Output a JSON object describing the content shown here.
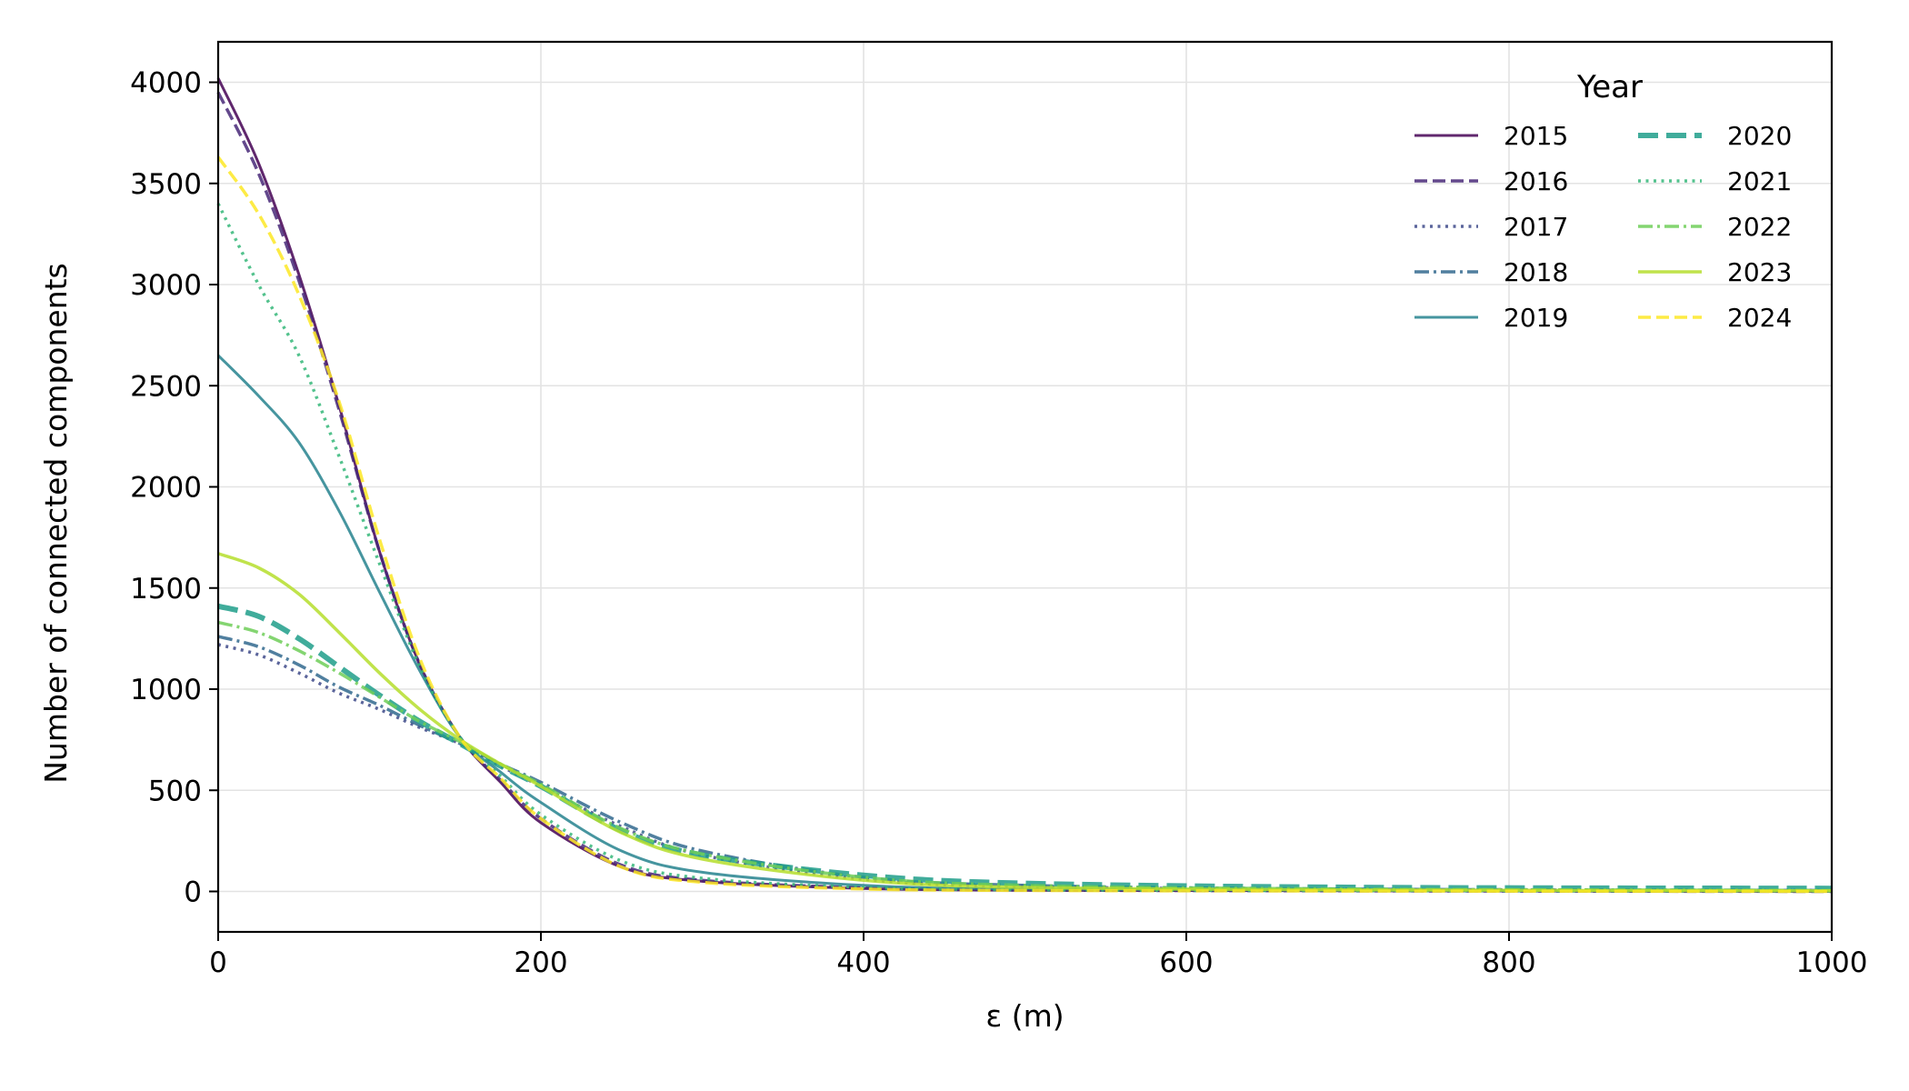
{
  "chart_data": {
    "type": "line",
    "xlabel": "ε (m)",
    "ylabel": "Number of connected components",
    "xlim": [
      0,
      1000
    ],
    "ylim": [
      -200,
      4200
    ],
    "xticks": [
      0,
      200,
      400,
      600,
      800,
      1000
    ],
    "yticks": [
      0,
      500,
      1000,
      1500,
      2000,
      2500,
      3000,
      3500,
      4000
    ],
    "grid": true,
    "legend": {
      "title": "Year",
      "placement": "top-right",
      "columns": 2
    },
    "series": [
      {
        "name": "2015",
        "color": "#440154",
        "dash": "solid",
        "width": 3,
        "x": [
          0,
          25,
          50,
          75,
          100,
          125,
          150,
          175,
          200,
          250,
          300,
          400,
          500,
          700,
          1000
        ],
        "y": [
          4020,
          3600,
          3050,
          2400,
          1680,
          1120,
          760,
          540,
          340,
          120,
          50,
          15,
          6,
          3,
          0
        ]
      },
      {
        "name": "2016",
        "color": "#482878",
        "dash": "dashed",
        "width": 3.5,
        "x": [
          0,
          25,
          50,
          75,
          100,
          125,
          150,
          175,
          200,
          250,
          300,
          400,
          500,
          700,
          1000
        ],
        "y": [
          3950,
          3550,
          3020,
          2380,
          1680,
          1120,
          760,
          550,
          360,
          130,
          55,
          18,
          7,
          3,
          0
        ]
      },
      {
        "name": "2017",
        "color": "#3e4a89",
        "dash": "dotted",
        "width": 3.5,
        "x": [
          0,
          25,
          50,
          75,
          100,
          125,
          150,
          175,
          200,
          250,
          300,
          400,
          500,
          700,
          1000
        ],
        "y": [
          1220,
          1170,
          1080,
          980,
          900,
          810,
          730,
          620,
          520,
          320,
          180,
          60,
          25,
          10,
          5
        ]
      },
      {
        "name": "2018",
        "color": "#31688e",
        "dash": "dashdot",
        "width": 3.5,
        "x": [
          0,
          25,
          50,
          75,
          100,
          125,
          150,
          175,
          200,
          250,
          300,
          400,
          500,
          700,
          1000
        ],
        "y": [
          1260,
          1210,
          1120,
          1010,
          920,
          820,
          730,
          630,
          540,
          340,
          200,
          70,
          30,
          12,
          5
        ]
      },
      {
        "name": "2019",
        "color": "#26828e",
        "dash": "solid",
        "width": 3,
        "x": [
          0,
          25,
          50,
          75,
          100,
          125,
          150,
          175,
          200,
          250,
          300,
          400,
          500,
          700,
          1000
        ],
        "y": [
          2650,
          2450,
          2220,
          1880,
          1480,
          1090,
          760,
          590,
          440,
          200,
          95,
          30,
          12,
          5,
          2
        ]
      },
      {
        "name": "2020",
        "color": "#1f9e89",
        "dash": "longdash",
        "width": 6,
        "x": [
          0,
          25,
          50,
          75,
          100,
          125,
          150,
          175,
          200,
          250,
          300,
          400,
          500,
          700,
          1000
        ],
        "y": [
          1410,
          1360,
          1250,
          1110,
          970,
          840,
          730,
          620,
          520,
          300,
          180,
          80,
          40,
          20,
          15
        ]
      },
      {
        "name": "2021",
        "color": "#35b779",
        "dash": "dotted",
        "width": 3.5,
        "x": [
          0,
          25,
          50,
          75,
          100,
          125,
          150,
          175,
          200,
          250,
          300,
          400,
          500,
          700,
          1000
        ],
        "y": [
          3400,
          3000,
          2650,
          2150,
          1620,
          1110,
          760,
          570,
          380,
          150,
          65,
          20,
          8,
          4,
          2
        ]
      },
      {
        "name": "2022",
        "color": "#6ece58",
        "dash": "dashdot",
        "width": 3.5,
        "x": [
          0,
          25,
          50,
          75,
          100,
          125,
          150,
          175,
          200,
          250,
          300,
          400,
          500,
          700,
          1000
        ],
        "y": [
          1330,
          1280,
          1190,
          1080,
          960,
          840,
          740,
          630,
          530,
          310,
          185,
          70,
          30,
          12,
          5
        ]
      },
      {
        "name": "2023",
        "color": "#b5de2b",
        "dash": "solid",
        "width": 3.5,
        "x": [
          0,
          25,
          50,
          75,
          100,
          125,
          150,
          175,
          200,
          250,
          300,
          400,
          500,
          700,
          1000
        ],
        "y": [
          1670,
          1600,
          1470,
          1280,
          1080,
          900,
          750,
          630,
          520,
          290,
          160,
          55,
          20,
          8,
          3
        ]
      },
      {
        "name": "2024",
        "color": "#fde725",
        "dash": "dashed",
        "width": 3.5,
        "x": [
          0,
          25,
          50,
          75,
          100,
          125,
          150,
          175,
          200,
          250,
          300,
          400,
          500,
          700,
          1000
        ],
        "y": [
          3630,
          3350,
          2950,
          2420,
          1740,
          1150,
          760,
          560,
          360,
          120,
          45,
          12,
          5,
          2,
          0
        ]
      }
    ]
  }
}
